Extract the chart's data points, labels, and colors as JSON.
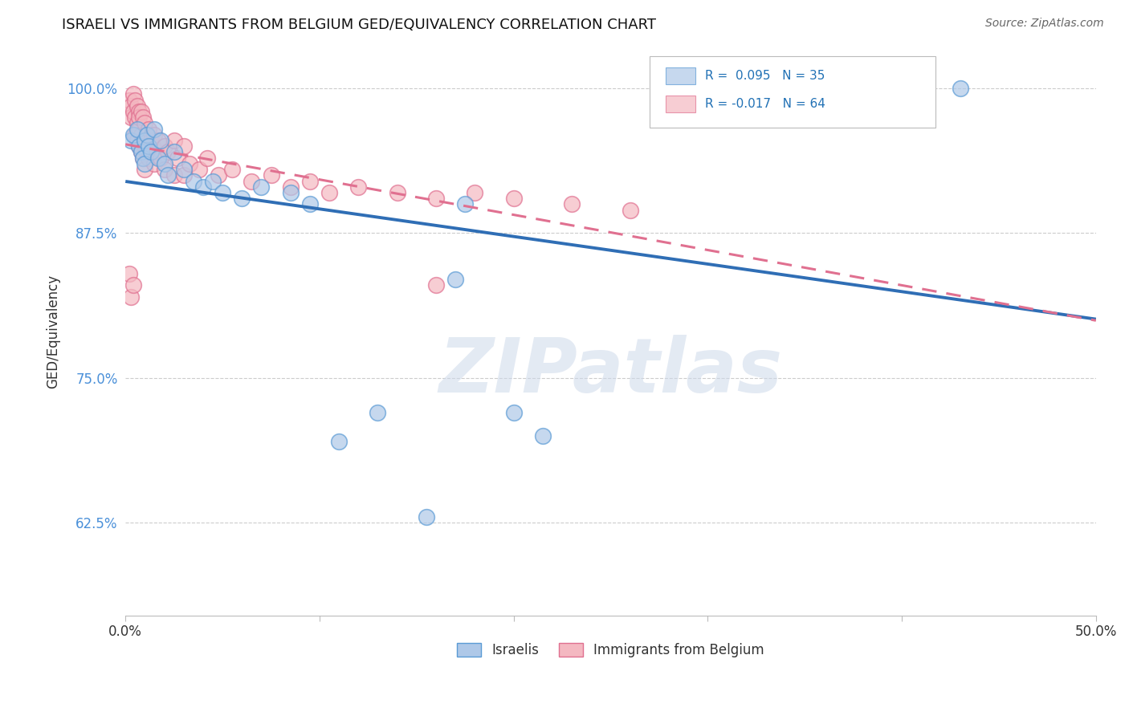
{
  "title": "ISRAELI VS IMMIGRANTS FROM BELGIUM GED/EQUIVALENCY CORRELATION CHART",
  "source": "Source: ZipAtlas.com",
  "ylabel": "GED/Equivalency",
  "xmin": 0.0,
  "xmax": 0.5,
  "ymin": 0.545,
  "ymax": 1.035,
  "yticks": [
    0.625,
    0.75,
    0.875,
    1.0
  ],
  "ytick_labels": [
    "62.5%",
    "75.0%",
    "87.5%",
    "100.0%"
  ],
  "xticks": [
    0.0,
    0.1,
    0.2,
    0.3,
    0.4,
    0.5
  ],
  "xtick_labels": [
    "0.0%",
    "",
    "",
    "",
    "",
    "50.0%"
  ],
  "watermark": "ZIPatlas",
  "israelis_x": [
    0.003,
    0.004,
    0.006,
    0.007,
    0.008,
    0.009,
    0.01,
    0.01,
    0.011,
    0.012,
    0.013,
    0.015,
    0.017,
    0.018,
    0.02,
    0.022,
    0.025,
    0.03,
    0.035,
    0.04,
    0.045,
    0.05,
    0.06,
    0.07,
    0.085,
    0.095,
    0.11,
    0.13,
    0.155,
    0.175,
    0.2,
    0.215,
    0.17,
    0.38,
    0.43
  ],
  "israelis_y": [
    0.955,
    0.96,
    0.965,
    0.95,
    0.945,
    0.94,
    0.935,
    0.955,
    0.96,
    0.95,
    0.945,
    0.965,
    0.94,
    0.955,
    0.935,
    0.925,
    0.945,
    0.93,
    0.92,
    0.915,
    0.92,
    0.91,
    0.905,
    0.915,
    0.91,
    0.9,
    0.695,
    0.72,
    0.63,
    0.9,
    0.72,
    0.7,
    0.835,
    1.0,
    1.0
  ],
  "belgians_x": [
    0.002,
    0.003,
    0.003,
    0.004,
    0.004,
    0.005,
    0.005,
    0.005,
    0.006,
    0.006,
    0.006,
    0.007,
    0.007,
    0.007,
    0.007,
    0.008,
    0.008,
    0.008,
    0.009,
    0.009,
    0.009,
    0.01,
    0.01,
    0.01,
    0.011,
    0.011,
    0.012,
    0.012,
    0.013,
    0.014,
    0.015,
    0.015,
    0.016,
    0.017,
    0.018,
    0.02,
    0.02,
    0.022,
    0.025,
    0.025,
    0.027,
    0.03,
    0.03,
    0.033,
    0.038,
    0.042,
    0.048,
    0.055,
    0.065,
    0.075,
    0.085,
    0.095,
    0.105,
    0.12,
    0.14,
    0.16,
    0.18,
    0.2,
    0.23,
    0.26,
    0.002,
    0.003,
    0.004,
    0.16
  ],
  "belgians_y": [
    0.99,
    0.985,
    0.975,
    0.995,
    0.98,
    0.975,
    0.99,
    0.96,
    0.985,
    0.97,
    0.955,
    0.98,
    0.965,
    0.95,
    0.975,
    0.96,
    0.98,
    0.945,
    0.975,
    0.955,
    0.94,
    0.97,
    0.95,
    0.93,
    0.96,
    0.945,
    0.965,
    0.94,
    0.955,
    0.95,
    0.96,
    0.935,
    0.945,
    0.955,
    0.94,
    0.95,
    0.93,
    0.945,
    0.955,
    0.925,
    0.94,
    0.95,
    0.925,
    0.935,
    0.93,
    0.94,
    0.925,
    0.93,
    0.92,
    0.925,
    0.915,
    0.92,
    0.91,
    0.915,
    0.91,
    0.905,
    0.91,
    0.905,
    0.9,
    0.895,
    0.84,
    0.82,
    0.83,
    0.83
  ],
  "israeli_fill": "#aec8e8",
  "israeli_edge": "#5b9bd5",
  "belgian_fill": "#f4b8c1",
  "belgian_edge": "#e07090",
  "trend_israeli_color": "#2f6eb5",
  "trend_belgian_color": "#e07090",
  "legend_box_color": "#dddddd"
}
